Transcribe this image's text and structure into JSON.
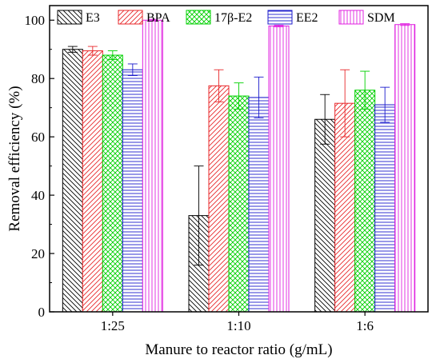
{
  "chart_data": {
    "type": "bar",
    "title": "",
    "xlabel": "Manure to reactor ratio (g/mL)",
    "ylabel": "Removal efficiency (%)",
    "ylim": [
      0,
      105
    ],
    "yticks": [
      0,
      20,
      40,
      60,
      80,
      100
    ],
    "categories": [
      "1:25",
      "1:10",
      "1:6"
    ],
    "legend_position": "top",
    "grid": false,
    "series": [
      {
        "name": "E3",
        "color": "#000000",
        "pattern": "diag-left",
        "values": [
          90,
          33,
          66
        ],
        "errors": [
          1,
          17,
          8.5
        ]
      },
      {
        "name": "BPA",
        "color": "#e8282b",
        "pattern": "diag-right",
        "values": [
          89.5,
          77.5,
          71.5
        ],
        "errors": [
          1.5,
          5.5,
          11.5
        ]
      },
      {
        "name": "17β-E2",
        "color": "#00d000",
        "pattern": "crosshatch",
        "values": [
          88,
          74,
          76
        ],
        "errors": [
          1.5,
          4.5,
          6.5
        ]
      },
      {
        "name": "EE2",
        "color": "#1c1ccc",
        "pattern": "horizontal",
        "values": [
          83,
          73.5,
          71
        ],
        "errors": [
          2,
          7,
          6
        ]
      },
      {
        "name": "SDM",
        "color": "#e020e0",
        "pattern": "vertical",
        "values": [
          100,
          98,
          98.5
        ],
        "errors": [
          0.3,
          0.3,
          0.3
        ]
      }
    ]
  }
}
